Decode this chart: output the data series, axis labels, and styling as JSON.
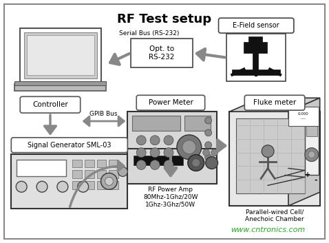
{
  "title": "RF Test setup",
  "title_fontsize": 13,
  "title_fontweight": "bold",
  "bg_color": "#ffffff",
  "box_color": "#ffffff",
  "arrow_color": "#888888",
  "text_color": "#000000",
  "watermark": "www.cntronics.com",
  "watermark_color": "#22aa22",
  "serial_bus_label": "Serial Bus (RS-232)",
  "gpib_label": "GPIB Bus",
  "controller_label": "Controller",
  "opt_label": "Opt. to\nRS-232",
  "efield_label": "E-Field sensor",
  "power_meter_label": "Power Meter",
  "fluke_label": "Fluke meter",
  "siggen_label": "Signal Generator SML-03",
  "rfamp_label": "RF Power Amp\n80Mhz-1Ghz/20W\n1Ghz-3Ghz/50W",
  "chamber_label": "Parallel-wired Cell/\nAnechoic Chamber"
}
